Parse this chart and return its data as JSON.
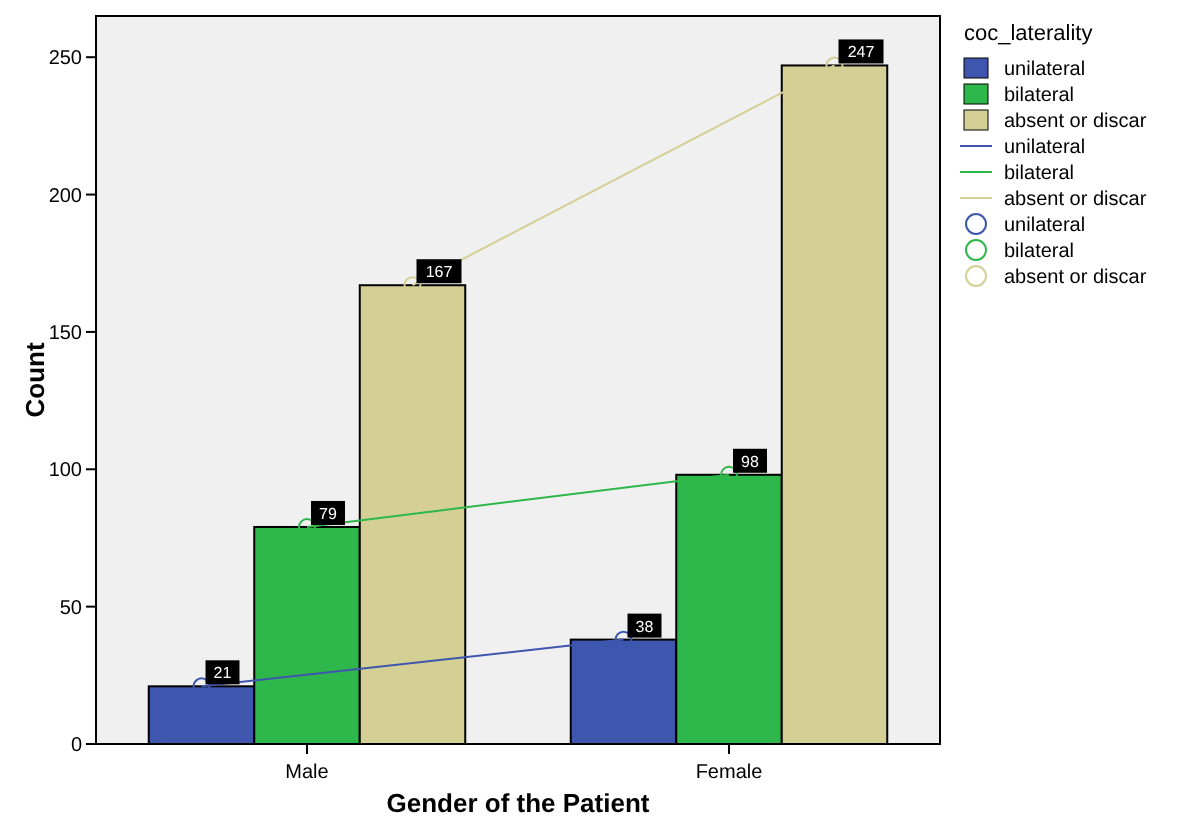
{
  "chart_data": {
    "type": "bar",
    "xlabel": "Gender of the Patient",
    "ylabel": "Count",
    "legend_title": "coc_laterality",
    "categories": [
      "Male",
      "Female"
    ],
    "ylim": [
      0,
      265
    ],
    "yticks": [
      0,
      50,
      100,
      150,
      200,
      250
    ],
    "legend": "right",
    "series": [
      {
        "name": "unilateral",
        "color": "#3e56ad",
        "values": [
          21,
          38
        ]
      },
      {
        "name": "bilateral",
        "color": "#2eb84b",
        "values": [
          79,
          98
        ]
      },
      {
        "name": "absent or discar",
        "color": "#d4cf95",
        "values": [
          167,
          247
        ]
      },
      {
        "type": "line",
        "name": "unilateral",
        "color": "#3e56ad",
        "values": [
          21,
          38
        ]
      },
      {
        "type": "line",
        "name": "bilateral",
        "color": "#2eb84b",
        "values": [
          79,
          98
        ]
      },
      {
        "type": "line",
        "name": "absent or discar",
        "color": "#d4cf95",
        "values": [
          167,
          247
        ]
      },
      {
        "type": "scatter",
        "name": "unilateral",
        "color": "#3e56ad",
        "values": [
          21,
          38
        ],
        "marker": "circle",
        "value_labels": [
          "21",
          "38"
        ]
      },
      {
        "type": "scatter",
        "name": "bilateral",
        "color": "#2eb84b",
        "values": [
          79,
          98
        ],
        "marker": "circle",
        "value_labels": [
          "79",
          "98"
        ]
      },
      {
        "type": "scatter",
        "name": "absent or discar",
        "color": "#d4cf95",
        "values": [
          167,
          247
        ],
        "marker": "circle",
        "value_labels": [
          "167",
          "247"
        ]
      }
    ]
  }
}
